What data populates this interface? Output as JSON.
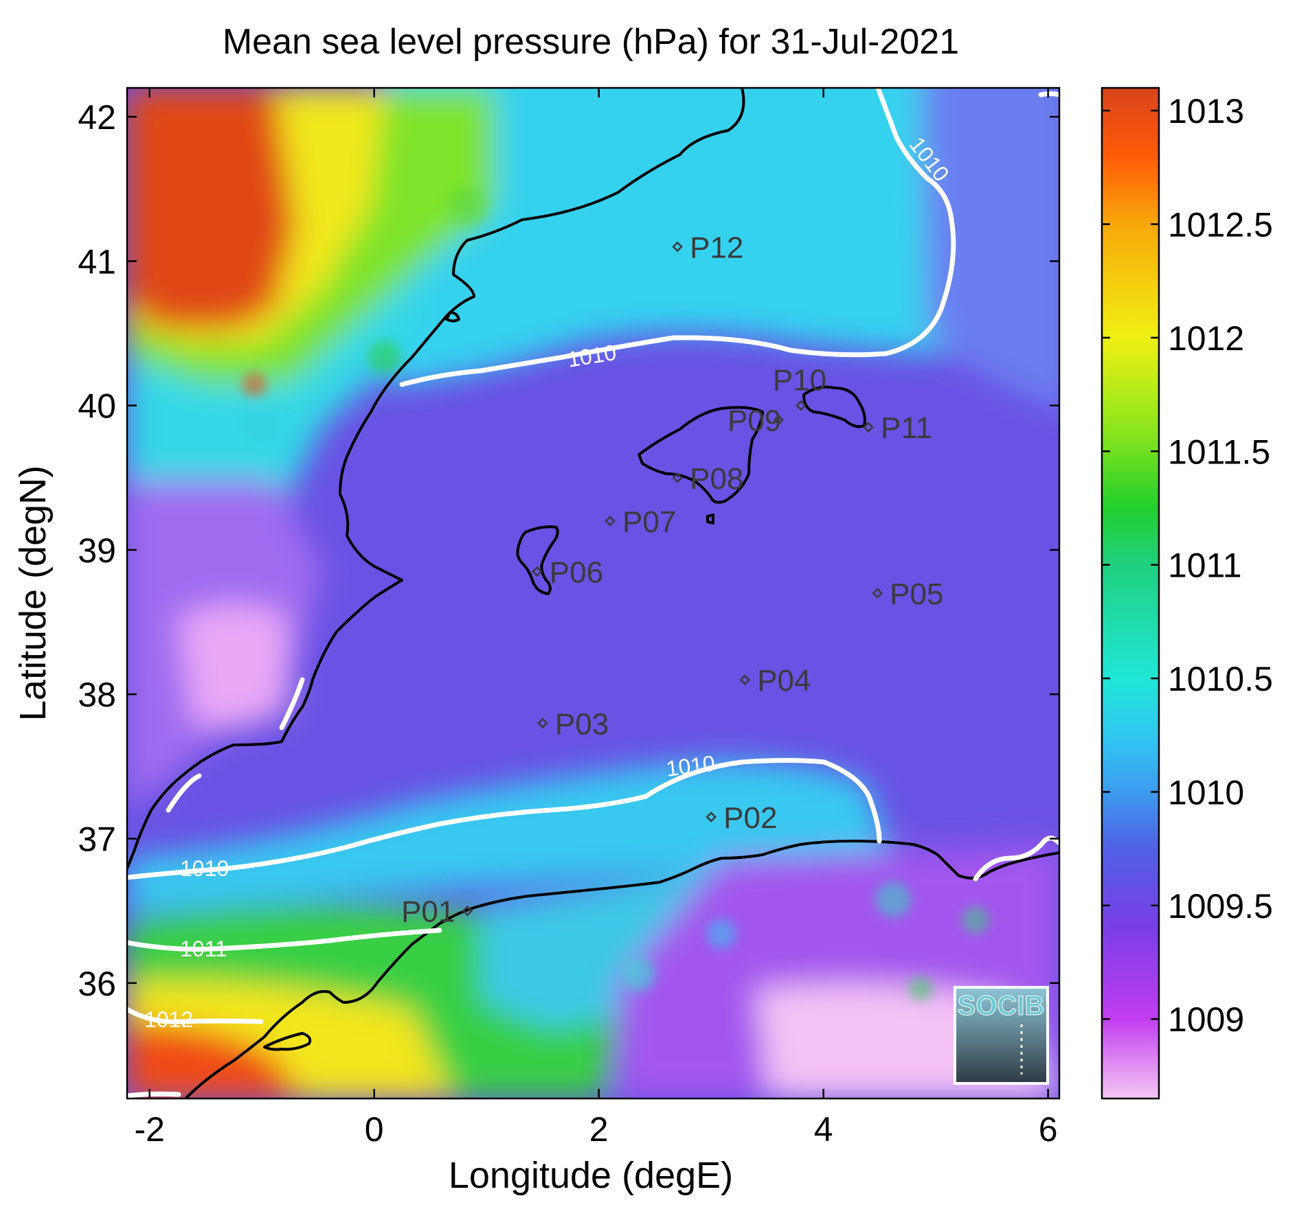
{
  "chart_data": {
    "type": "heatmap",
    "title": "Mean sea level pressure (hPa) for 31-Jul-2021",
    "xlabel": "Longitude (degE)",
    "ylabel": "Latitude (degN)",
    "xlim": [
      -2.2,
      6.1
    ],
    "ylim": [
      35.2,
      42.2
    ],
    "xticks": [
      -2,
      0,
      2,
      4,
      6
    ],
    "xtick_labels": [
      "-2",
      "0",
      "2",
      "4",
      "6"
    ],
    "yticks": [
      36,
      37,
      38,
      39,
      40,
      41,
      42
    ],
    "ytick_labels": [
      "36",
      "37",
      "38",
      "39",
      "40",
      "41",
      "42"
    ],
    "colorbar": {
      "range": [
        1008.65,
        1013.1
      ],
      "ticks": [
        1009,
        1009.5,
        1010,
        1010.5,
        1011,
        1011.5,
        1012,
        1012.5,
        1013
      ],
      "tick_labels": [
        "1009",
        "1009.5",
        "1010",
        "1010.5",
        "1011",
        "1011.5",
        "1012",
        "1012.5",
        "1013"
      ],
      "stops": [
        {
          "value": 1008.65,
          "color": "#f4c8f4"
        },
        {
          "value": 1009.0,
          "color": "#c23ef0"
        },
        {
          "value": 1009.4,
          "color": "#7a3ee6"
        },
        {
          "value": 1009.75,
          "color": "#5060e4"
        },
        {
          "value": 1010.0,
          "color": "#3c9cf0"
        },
        {
          "value": 1010.25,
          "color": "#30c8f0"
        },
        {
          "value": 1010.5,
          "color": "#20e6d6"
        },
        {
          "value": 1011.0,
          "color": "#20d080"
        },
        {
          "value": 1011.25,
          "color": "#22cf2c"
        },
        {
          "value": 1011.6,
          "color": "#8ee61c"
        },
        {
          "value": 1012.0,
          "color": "#f0f014"
        },
        {
          "value": 1012.5,
          "color": "#f7a80a"
        },
        {
          "value": 1012.8,
          "color": "#ff5a08"
        },
        {
          "value": 1013.1,
          "color": "#d8441c"
        }
      ]
    },
    "contours": [
      {
        "level": 1010,
        "label": "1010"
      },
      {
        "level": 1011,
        "label": "1011"
      },
      {
        "level": 1012,
        "label": "1012"
      }
    ],
    "stations": [
      {
        "name": "P01",
        "lon": 0.83,
        "lat": 36.5
      },
      {
        "name": "P02",
        "lon": 3.0,
        "lat": 37.15
      },
      {
        "name": "P03",
        "lon": 1.5,
        "lat": 37.8
      },
      {
        "name": "P04",
        "lon": 3.3,
        "lat": 38.1
      },
      {
        "name": "P05",
        "lon": 4.48,
        "lat": 38.7
      },
      {
        "name": "P06",
        "lon": 1.45,
        "lat": 38.85
      },
      {
        "name": "P07",
        "lon": 2.1,
        "lat": 39.2
      },
      {
        "name": "P08",
        "lon": 2.7,
        "lat": 39.5
      },
      {
        "name": "P09",
        "lon": 3.6,
        "lat": 39.9
      },
      {
        "name": "P10",
        "lon": 3.8,
        "lat": 40.0
      },
      {
        "name": "P11",
        "lon": 4.4,
        "lat": 39.85
      },
      {
        "name": "P12",
        "lon": 2.7,
        "lat": 41.1
      }
    ],
    "logo_text": "SOCIB",
    "grid": false
  }
}
